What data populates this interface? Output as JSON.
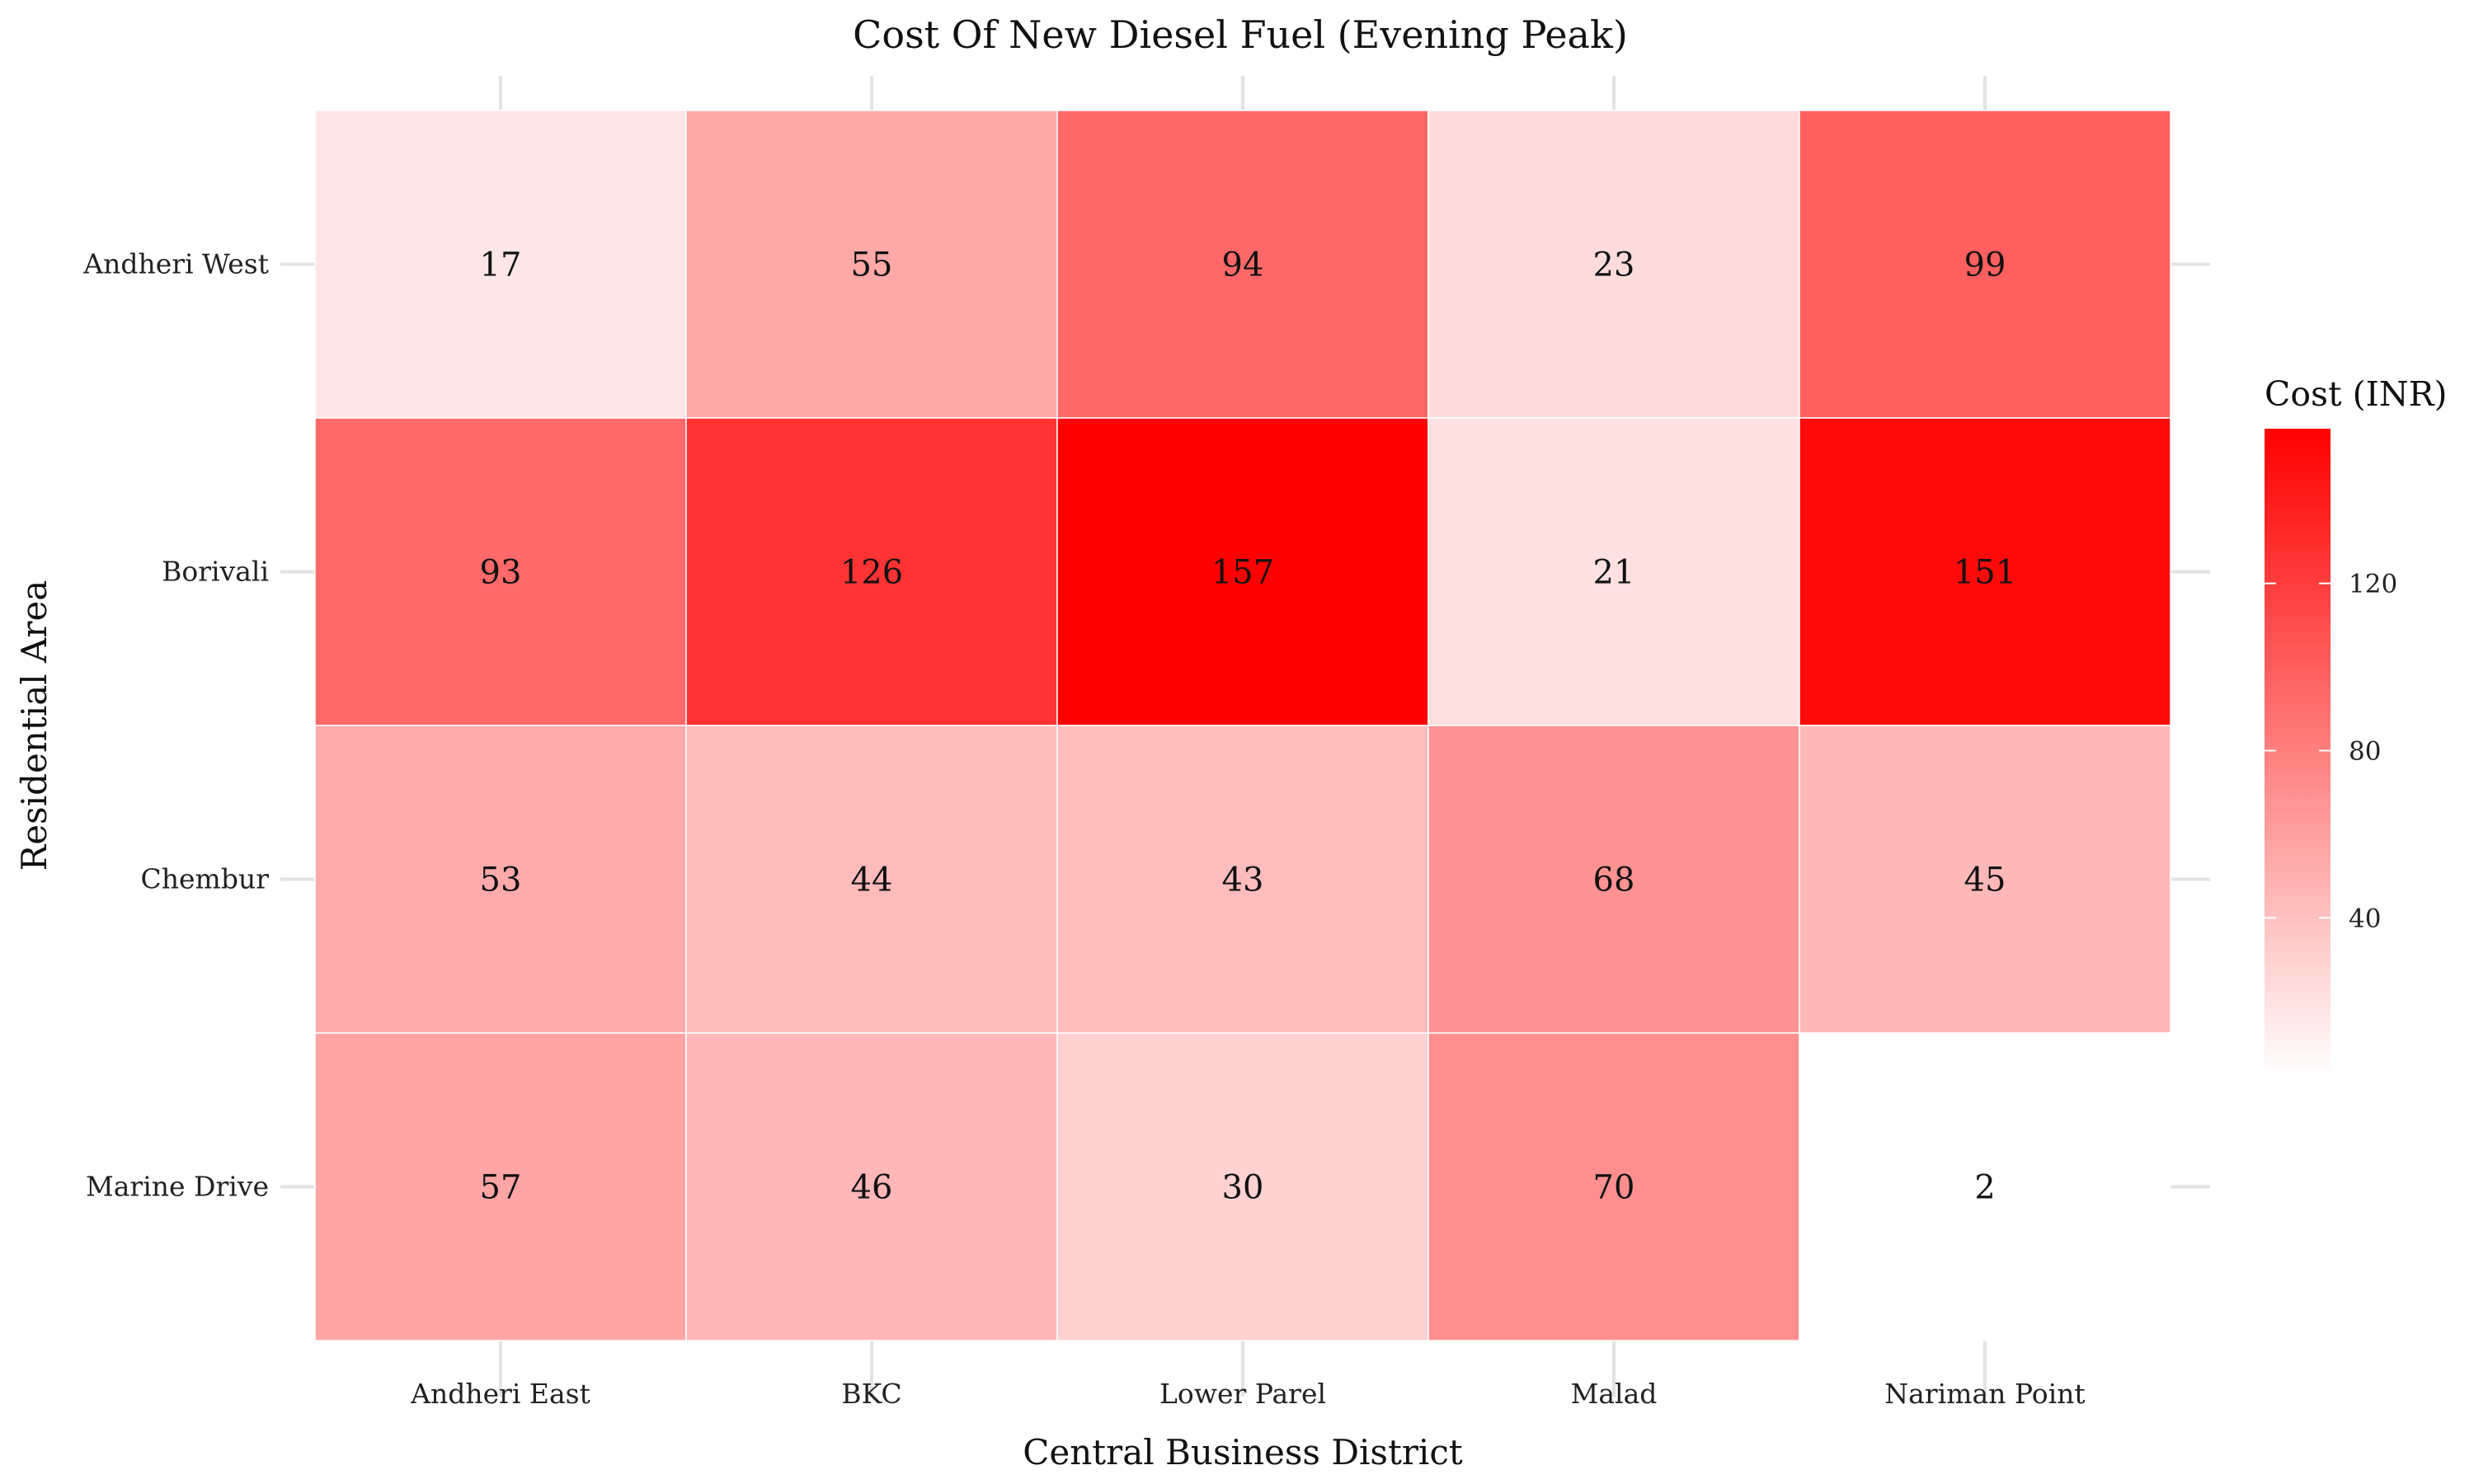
{
  "chart_data": {
    "type": "heatmap",
    "title": "Cost Of New Diesel Fuel (Evening Peak)",
    "xlabel": "Central Business District",
    "ylabel": "Residential Area",
    "x_categories": [
      "Andheri East",
      "BKC",
      "Lower Parel",
      "Malad",
      "Nariman Point"
    ],
    "y_categories": [
      "Andheri West",
      "Borivali",
      "Chembur",
      "Marine Drive"
    ],
    "values": [
      [
        17,
        55,
        94,
        23,
        99
      ],
      [
        93,
        126,
        157,
        21,
        151
      ],
      [
        53,
        44,
        43,
        68,
        45
      ],
      [
        57,
        46,
        30,
        70,
        2
      ]
    ],
    "legend": {
      "title": "Cost (INR)",
      "ticks": [
        40,
        80,
        120
      ],
      "range": [
        2,
        157
      ],
      "color_low": "#ffffff",
      "color_high": "#ff0000"
    },
    "grid": true
  }
}
